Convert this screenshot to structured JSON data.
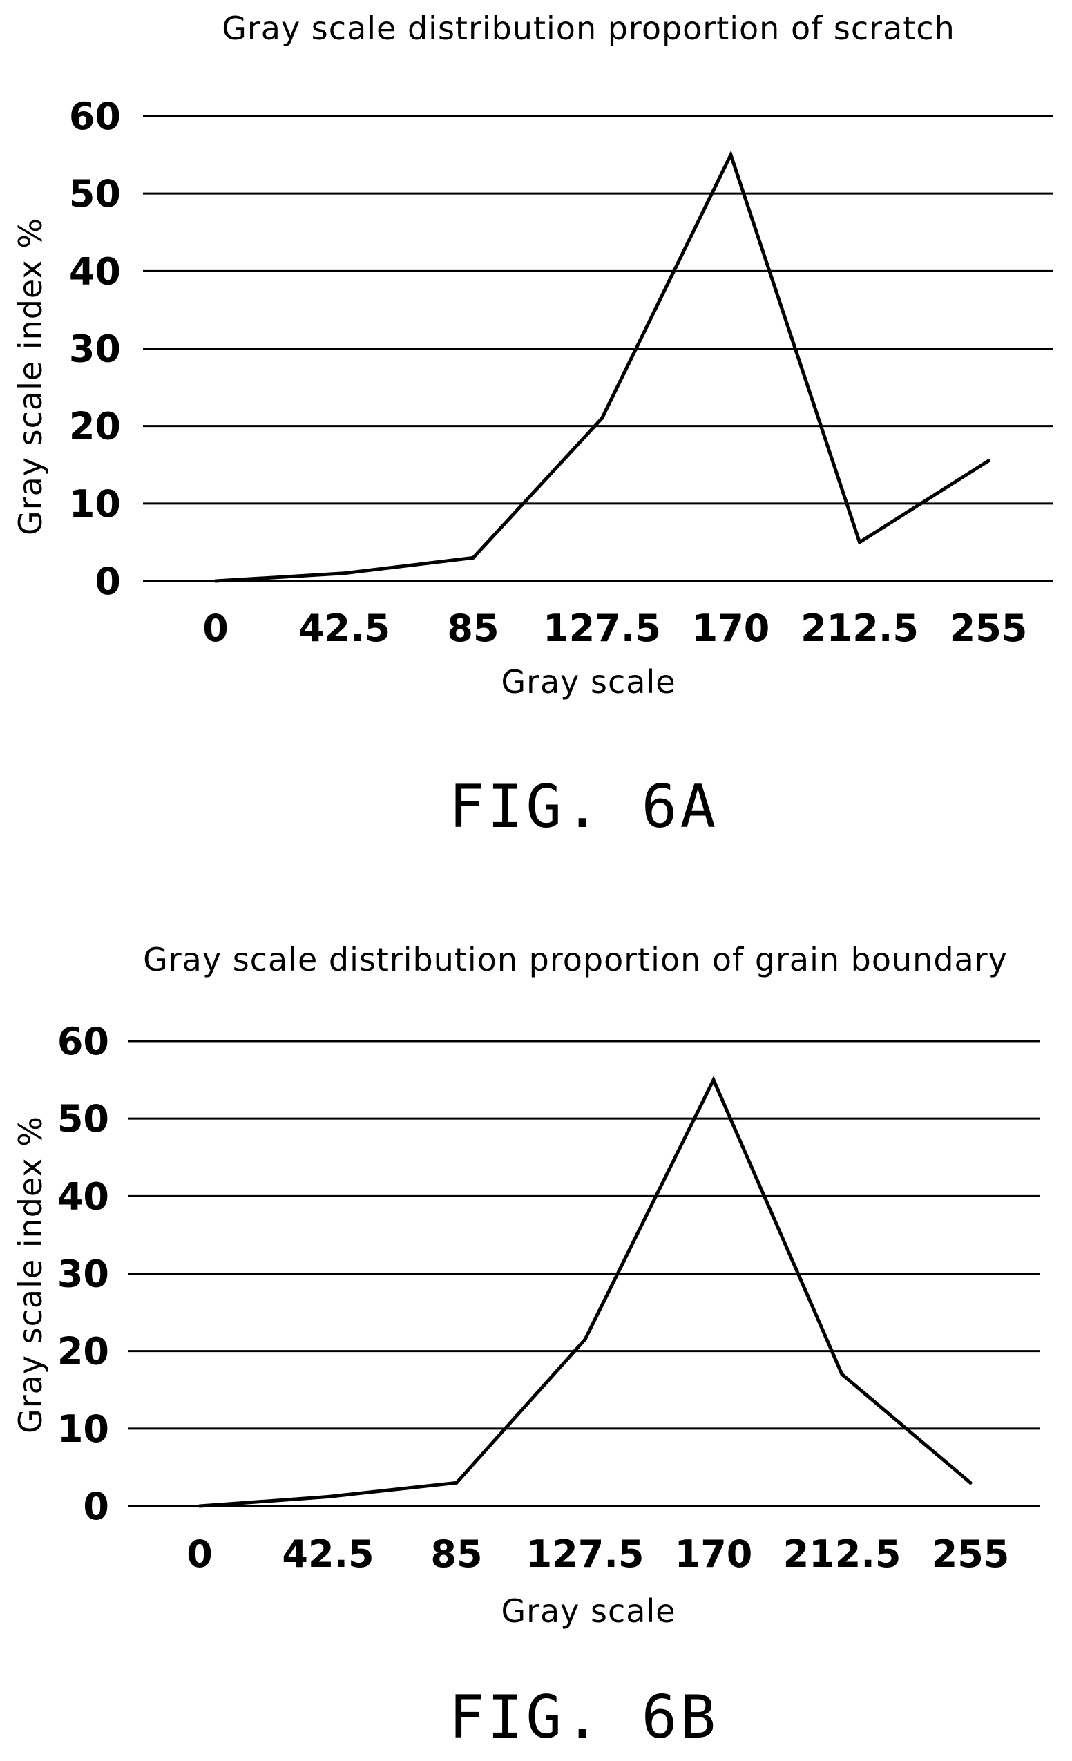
{
  "chart_data": [
    {
      "type": "line",
      "title": "Gray scale distribution proportion of scratch",
      "xlabel": "Gray scale",
      "ylabel": "Gray scale index %",
      "categories": [
        "0",
        "42.5",
        "85",
        "127.5",
        "170",
        "212.5",
        "255"
      ],
      "x": [
        0,
        42.5,
        85,
        127.5,
        170,
        212.5,
        255
      ],
      "values": [
        0,
        1,
        3,
        21,
        55,
        5,
        15.5
      ],
      "yticks": [
        "0",
        "10",
        "20",
        "30",
        "40",
        "50",
        "60"
      ],
      "ylim": [
        0,
        60
      ],
      "grid": true,
      "caption": "FIG. 6A",
      "line_color": "#000000"
    },
    {
      "type": "line",
      "title": "Gray scale distribution proportion of grain boundary",
      "xlabel": "Gray scale",
      "ylabel": "Gray scale index %",
      "categories": [
        "0",
        "42.5",
        "85",
        "127.5",
        "170",
        "212.5",
        "255"
      ],
      "x": [
        0,
        42.5,
        85,
        127.5,
        170,
        212.5,
        255
      ],
      "values": [
        0,
        1.2,
        3,
        21.5,
        55,
        17,
        3
      ],
      "yticks": [
        "0",
        "10",
        "20",
        "30",
        "40",
        "50",
        "60"
      ],
      "ylim": [
        0,
        60
      ],
      "grid": true,
      "caption": "FIG. 6B",
      "line_color": "#000000"
    }
  ]
}
